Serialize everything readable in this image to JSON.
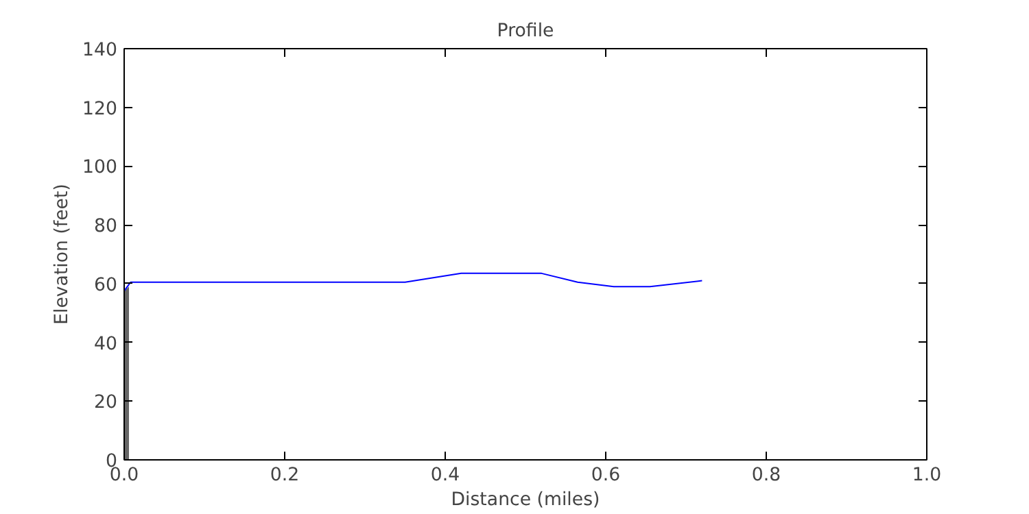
{
  "chart_data": {
    "type": "line",
    "title": "Profile",
    "xlabel": "Distance (miles)",
    "ylabel": "Elevation (feet)",
    "xlim": [
      0,
      1
    ],
    "ylim": [
      0,
      140
    ],
    "xticks": [
      {
        "value": 0,
        "label": "0.0"
      },
      {
        "value": 0.2,
        "label": "0.2"
      },
      {
        "value": 0.4,
        "label": "0.4"
      },
      {
        "value": 0.6,
        "label": "0.6"
      },
      {
        "value": 0.8,
        "label": "0.8"
      },
      {
        "value": 1,
        "label": "1.0"
      }
    ],
    "yticks": [
      0,
      20,
      40,
      60,
      80,
      100,
      120,
      140
    ],
    "grid": false,
    "series": [
      {
        "type": "area",
        "color": "#666666",
        "x": [
          0,
          0.006
        ],
        "values": [
          57.5,
          59
        ]
      },
      {
        "color": "#0000ff",
        "x": [
          0,
          0.008,
          0.35,
          0.42,
          0.52,
          0.565,
          0.61,
          0.655,
          0.72
        ],
        "values": [
          57.5,
          60.5,
          60.5,
          63.5,
          63.5,
          60.5,
          59,
          59,
          61
        ]
      }
    ]
  }
}
